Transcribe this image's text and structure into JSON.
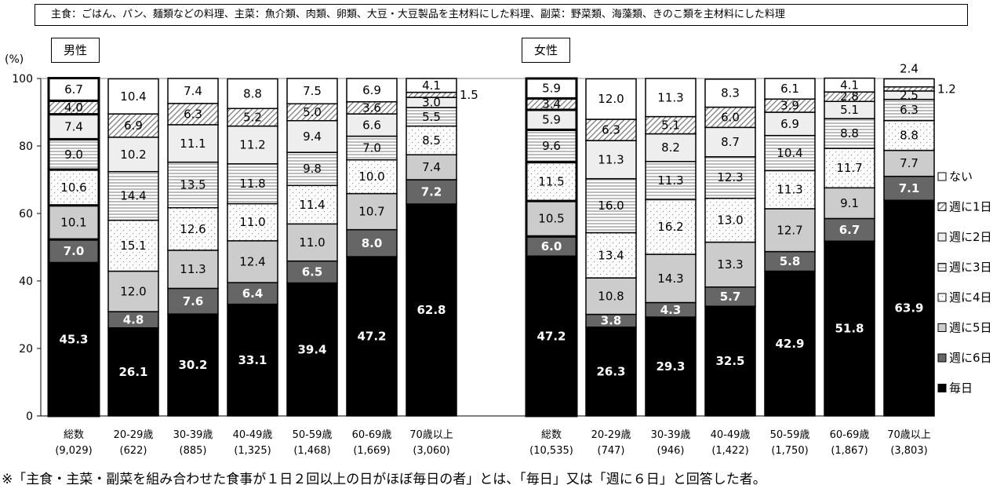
{
  "note": "主食：ごはん、パン、麺類などの料理、主菜：魚介類、肉類、卵類、大豆・大豆製品を主材料にした料理、副菜：野菜類、海藻類、きのこ類を主材料にした料理",
  "footer": "※「主食・主菜・副菜を組み合わせた食事が１日２回以上の日がほぼ毎日の者」とは、「毎日」又は「週に６日」と回答した者。",
  "chart_data": {
    "type": "bar",
    "stacked": true,
    "ylabel": "(%)",
    "ylim": [
      0,
      100
    ],
    "yticks": [
      0,
      20,
      40,
      60,
      80,
      100
    ],
    "grid": false,
    "legend_position": "right",
    "series_names": [
      "毎日",
      "週に6日",
      "週に5日",
      "週に4日",
      "週に3日",
      "週に2日",
      "週に1日",
      "ない"
    ],
    "series_colors": [
      "#000000",
      "#666666",
      "#cccccc",
      "dots",
      "hlines",
      "#eeeeee",
      "hatch",
      "#ffffff"
    ],
    "legend_order": [
      "ない",
      "週に1日",
      "週に2日",
      "週に3日",
      "週に4日",
      "週に5日",
      "週に6日",
      "毎日"
    ],
    "groups": [
      {
        "label": "男性",
        "bars": [
          {
            "category": "総数",
            "n": "(9,029)",
            "values": [
              45.3,
              7.0,
              10.1,
              10.6,
              9.0,
              7.4,
              4.0,
              6.7
            ]
          },
          {
            "category": "20-29歳",
            "n": "(622)",
            "values": [
              26.1,
              4.8,
              12.0,
              15.1,
              14.4,
              10.2,
              6.9,
              10.4
            ]
          },
          {
            "category": "30-39歳",
            "n": "(885)",
            "values": [
              30.2,
              7.6,
              11.3,
              12.6,
              13.5,
              11.1,
              6.3,
              7.4
            ]
          },
          {
            "category": "40-49歳",
            "n": "(1,325)",
            "values": [
              33.1,
              6.4,
              12.4,
              11.0,
              11.8,
              11.2,
              5.2,
              8.8
            ]
          },
          {
            "category": "50-59歳",
            "n": "(1,468)",
            "values": [
              39.4,
              6.5,
              11.0,
              11.4,
              9.8,
              9.4,
              5.0,
              7.5
            ]
          },
          {
            "category": "60-69歳",
            "n": "(1,669)",
            "values": [
              47.2,
              8.0,
              10.7,
              10.0,
              7.0,
              6.6,
              3.6,
              6.9
            ]
          },
          {
            "category": "70歳以上",
            "n": "(3,060)",
            "values": [
              62.8,
              7.2,
              7.4,
              8.5,
              5.5,
              3.0,
              1.5,
              4.1
            ]
          }
        ]
      },
      {
        "label": "女性",
        "bars": [
          {
            "category": "総数",
            "n": "(10,535)",
            "values": [
              47.2,
              6.0,
              10.5,
              11.5,
              9.6,
              5.9,
              3.4,
              5.9
            ]
          },
          {
            "category": "20-29歳",
            "n": "(747)",
            "values": [
              26.3,
              3.8,
              10.8,
              13.4,
              16.0,
              11.3,
              6.3,
              12.0
            ]
          },
          {
            "category": "30-39歳",
            "n": "(946)",
            "values": [
              29.3,
              4.3,
              14.3,
              16.2,
              11.3,
              8.2,
              5.1,
              11.3
            ]
          },
          {
            "category": "40-49歳",
            "n": "(1,422)",
            "values": [
              32.5,
              5.7,
              13.3,
              13.0,
              12.3,
              8.7,
              6.0,
              8.3
            ]
          },
          {
            "category": "50-59歳",
            "n": "(1,750)",
            "values": [
              42.9,
              5.8,
              12.7,
              11.3,
              10.4,
              6.9,
              3.9,
              6.1
            ]
          },
          {
            "category": "60-69歳",
            "n": "(1,867)",
            "values": [
              51.8,
              6.7,
              9.1,
              11.7,
              8.8,
              5.1,
              2.8,
              4.1
            ]
          },
          {
            "category": "70歳以上",
            "n": "(3,803)",
            "values": [
              63.9,
              7.1,
              7.7,
              8.8,
              6.3,
              2.5,
              1.2,
              2.4
            ]
          }
        ]
      }
    ]
  }
}
